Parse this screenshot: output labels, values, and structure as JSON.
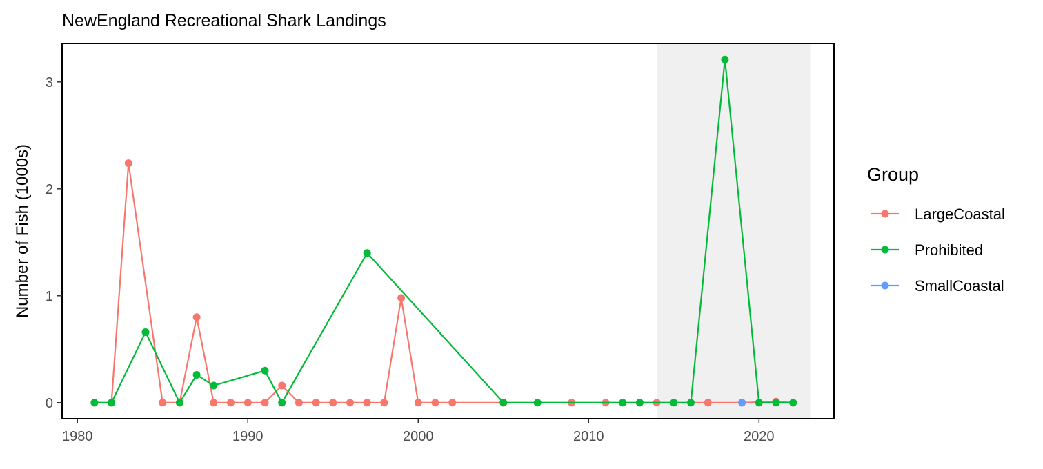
{
  "chart_data": {
    "type": "line",
    "title": "NewEngland Recreational Shark Landings",
    "xlabel": "",
    "ylabel": "Number of Fish (1000s)",
    "xlim": [
      1979.1,
      2024.4
    ],
    "ylim": [
      -0.15,
      3.36
    ],
    "x_ticks": [
      1980,
      1990,
      2000,
      2010,
      2020
    ],
    "y_ticks": [
      0,
      1,
      2,
      3
    ],
    "grid": false,
    "shaded_region": {
      "x_start": 2014,
      "x_end": 2023,
      "color": "#f0f0f0"
    },
    "legend": {
      "title": "Group",
      "position": "right"
    },
    "series": [
      {
        "name": "LargeCoastal",
        "color": "#f8766d",
        "x": [
          1981,
          1982,
          1983,
          1985,
          1986,
          1987,
          1988,
          1989,
          1990,
          1991,
          1992,
          1993,
          1994,
          1995,
          1996,
          1997,
          1998,
          1999,
          2000,
          2001,
          2002,
          2005,
          2009,
          2011,
          2013,
          2014,
          2017,
          2019,
          2021,
          2022
        ],
        "values": [
          0,
          0,
          2.24,
          0,
          0,
          0.8,
          0,
          0,
          0,
          0,
          0.16,
          0,
          0,
          0,
          0,
          0,
          0,
          0.98,
          0,
          0,
          0,
          0,
          0,
          0,
          0,
          0,
          0,
          0,
          0.01,
          0
        ]
      },
      {
        "name": "Prohibited",
        "color": "#00ba38",
        "x": [
          1981,
          1982,
          1984,
          1986,
          1987,
          1988,
          1991,
          1992,
          1997,
          2005,
          2007,
          2012,
          2013,
          2015,
          2016,
          2018,
          2020,
          2021,
          2022
        ],
        "values": [
          0,
          0,
          0.66,
          0,
          0.26,
          0.16,
          0.3,
          0,
          1.4,
          0,
          0,
          0,
          0,
          0,
          0,
          3.21,
          0,
          0,
          0
        ]
      },
      {
        "name": "SmallCoastal",
        "color": "#619cff",
        "x": [
          2019
        ],
        "values": [
          0
        ]
      }
    ]
  }
}
